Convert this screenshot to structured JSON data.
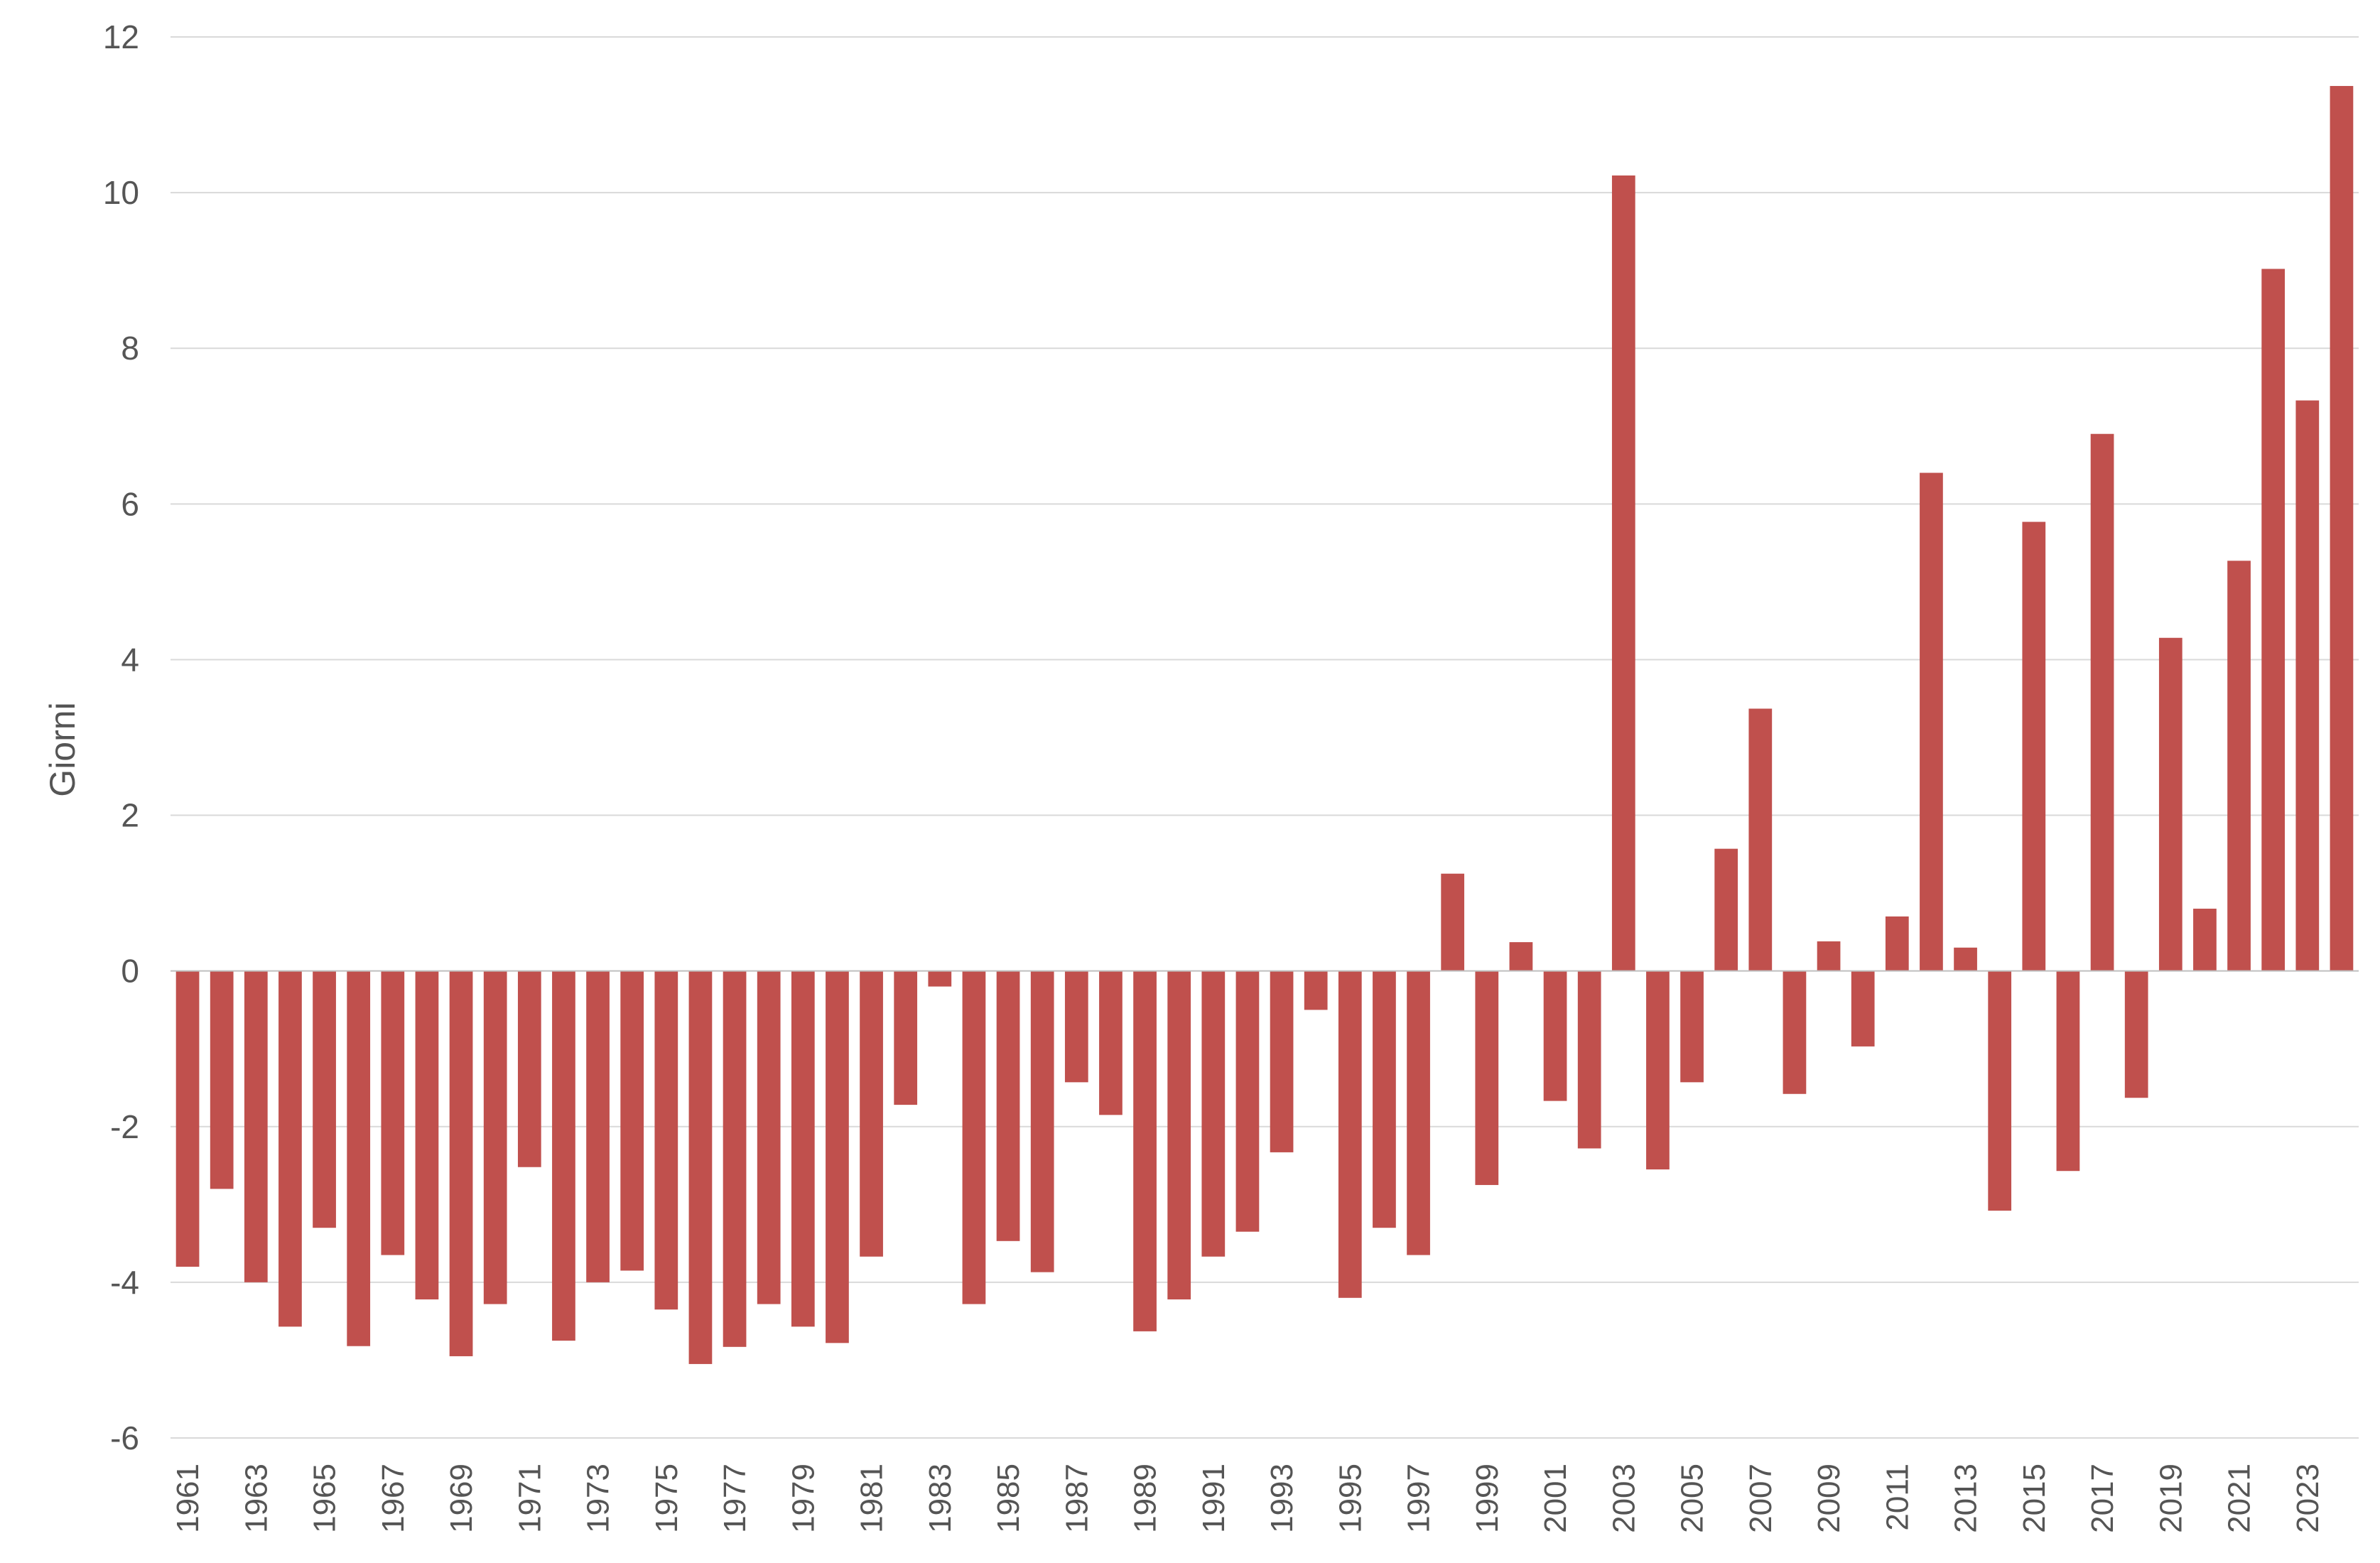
{
  "chart_data": {
    "type": "bar",
    "ylabel": "Giorni",
    "xlabel": "",
    "ylim": [
      -6,
      12
    ],
    "yticks": [
      -6,
      -4,
      -2,
      0,
      2,
      4,
      6,
      8,
      10,
      12
    ],
    "grid": true,
    "legend": "none",
    "bar_color": "#c0504d",
    "categories": [
      "1961",
      "1962",
      "1963",
      "1964",
      "1965",
      "1966",
      "1967",
      "1968",
      "1969",
      "1970",
      "1971",
      "1972",
      "1973",
      "1974",
      "1975",
      "1976",
      "1977",
      "1978",
      "1979",
      "1980",
      "1981",
      "1982",
      "1983",
      "1984",
      "1985",
      "1986",
      "1987",
      "1988",
      "1989",
      "1990",
      "1991",
      "1992",
      "1993",
      "1994",
      "1995",
      "1996",
      "1997",
      "1998",
      "1999",
      "2000",
      "2001",
      "2002",
      "2003",
      "2004",
      "2005",
      "2006",
      "2007",
      "2008",
      "2009",
      "2010",
      "2011",
      "2012",
      "2013",
      "2014",
      "2015",
      "2016",
      "2017",
      "2018",
      "2019",
      "2020",
      "2021",
      "2022",
      "2023",
      "2024"
    ],
    "tick_labels_shown": [
      "1961",
      "1963",
      "1965",
      "1967",
      "1969",
      "1971",
      "1973",
      "1975",
      "1977",
      "1979",
      "1981",
      "1983",
      "1985",
      "1987",
      "1989",
      "1991",
      "1993",
      "1995",
      "1997",
      "1999",
      "2001",
      "2003",
      "2005",
      "2007",
      "2009",
      "2011",
      "2013",
      "2015",
      "2017",
      "2019",
      "2021",
      "2023"
    ],
    "values": [
      -3.8,
      -2.8,
      -4.0,
      -4.57,
      -3.3,
      -4.82,
      -3.65,
      -4.22,
      -4.95,
      -4.28,
      -2.52,
      -4.75,
      -4.0,
      -3.85,
      -4.35,
      -5.05,
      -4.83,
      -4.28,
      -4.57,
      -4.78,
      -3.67,
      -1.72,
      -0.2,
      -4.28,
      -3.47,
      -3.87,
      -1.43,
      -1.85,
      -4.63,
      -4.22,
      -3.67,
      -3.35,
      -2.33,
      -0.5,
      -4.2,
      -3.3,
      -3.65,
      1.25,
      -2.75,
      0.37,
      -1.67,
      -2.28,
      10.22,
      -2.55,
      -1.43,
      1.57,
      3.37,
      -1.58,
      0.38,
      -0.97,
      0.7,
      6.4,
      0.3,
      -3.08,
      5.77,
      -2.57,
      6.9,
      -1.63,
      4.28,
      0.8,
      5.27,
      9.02,
      7.33,
      11.37
    ]
  }
}
